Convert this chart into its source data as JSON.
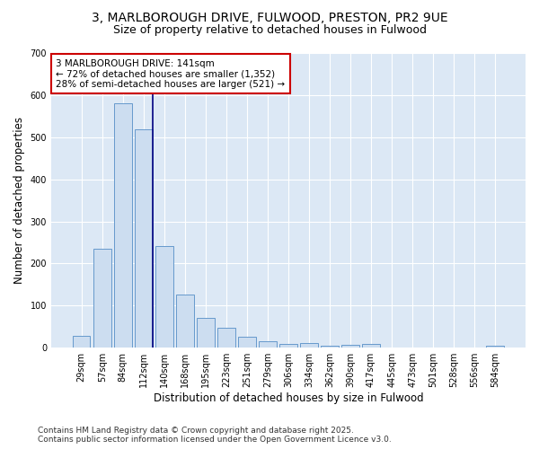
{
  "title_line1": "3, MARLBOROUGH DRIVE, FULWOOD, PRESTON, PR2 9UE",
  "title_line2": "Size of property relative to detached houses in Fulwood",
  "xlabel": "Distribution of detached houses by size in Fulwood",
  "ylabel": "Number of detached properties",
  "categories": [
    "29sqm",
    "57sqm",
    "84sqm",
    "112sqm",
    "140sqm",
    "168sqm",
    "195sqm",
    "223sqm",
    "251sqm",
    "279sqm",
    "306sqm",
    "334sqm",
    "362sqm",
    "390sqm",
    "417sqm",
    "445sqm",
    "473sqm",
    "501sqm",
    "528sqm",
    "556sqm",
    "584sqm"
  ],
  "values": [
    28,
    234,
    580,
    519,
    242,
    127,
    70,
    47,
    27,
    16,
    10,
    11,
    5,
    6,
    8,
    0,
    0,
    0,
    0,
    0,
    5
  ],
  "bar_color": "#ccddf0",
  "bar_edge_color": "#6699cc",
  "vline_x_index": 3,
  "vline_color": "#000080",
  "annotation_text": "3 MARLBOROUGH DRIVE: 141sqm\n← 72% of detached houses are smaller (1,352)\n28% of semi-detached houses are larger (521) →",
  "annotation_box_color": "#ffffff",
  "annotation_box_edge_color": "#cc0000",
  "fig_background_color": "#ffffff",
  "plot_background_color": "#dce8f5",
  "footer_line1": "Contains HM Land Registry data © Crown copyright and database right 2025.",
  "footer_line2": "Contains public sector information licensed under the Open Government Licence v3.0.",
  "ylim": [
    0,
    700
  ],
  "yticks": [
    0,
    100,
    200,
    300,
    400,
    500,
    600,
    700
  ],
  "grid_color": "#ffffff",
  "title_fontsize": 10,
  "subtitle_fontsize": 9,
  "axis_label_fontsize": 8.5,
  "tick_fontsize": 7,
  "annotation_fontsize": 7.5,
  "footer_fontsize": 6.5
}
